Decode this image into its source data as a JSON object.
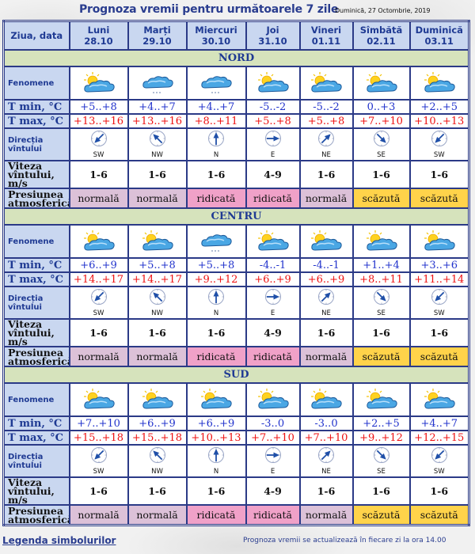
{
  "header": {
    "title": "Prognoza vremii pentru următoarele 7 zile",
    "date": "Duminică, 27 Octombrie, 2019"
  },
  "table": {
    "corner_label": "Ziua, data",
    "days": [
      {
        "name": "Luni",
        "date": "28.10"
      },
      {
        "name": "Marți",
        "date": "29.10"
      },
      {
        "name": "Miercuri",
        "date": "30.10"
      },
      {
        "name": "Joi",
        "date": "31.10"
      },
      {
        "name": "Vineri",
        "date": "01.11"
      },
      {
        "name": "Sîmbătă",
        "date": "02.11"
      },
      {
        "name": "Duminică",
        "date": "03.11"
      }
    ],
    "row_labels": {
      "fenomene": "Fenomene",
      "tmin": "T min, °C",
      "tmax": "T max, °C",
      "dir_1": "Direcția",
      "dir_2": "vîntului",
      "speed_1": "Viteza",
      "speed_2": "vîntului, m/s",
      "pressure_1": "Presiunea",
      "pressure_2": "atmosferică"
    }
  },
  "regions": [
    {
      "name": "NORD",
      "fenomene": [
        "sun-cloud-icon",
        "cloud-snow-icon",
        "cloud-snow-icon",
        "sun-cloud-icon",
        "sun-cloud-icon",
        "sun-cloud-icon",
        "sun-cloud-icon"
      ],
      "tmin": [
        "+5..+8",
        "+4..+7",
        "+4..+7",
        "-5..-2",
        "-5..-2",
        "0..+3",
        "+2..+5"
      ],
      "tmax": [
        "+13..+16",
        "+13..+16",
        "+8..+11",
        "+5..+8",
        "+5..+8",
        "+7..+10",
        "+10..+13"
      ],
      "wind_dir": [
        "SW",
        "NW",
        "N",
        "E",
        "NE",
        "SE",
        "SW"
      ],
      "wind_speed": [
        "1-6",
        "1-6",
        "1-6",
        "4-9",
        "1-6",
        "1-6",
        "1-6"
      ],
      "pressure": [
        "normală",
        "normală",
        "ridicată",
        "ridicată",
        "normală",
        "scăzută",
        "scăzută"
      ]
    },
    {
      "name": "CENTRU",
      "fenomene": [
        "sun-cloud-icon",
        "sun-cloud-icon",
        "cloud-snow-icon",
        "sun-cloud-icon",
        "sun-cloud-icon",
        "sun-cloud-icon",
        "sun-cloud-icon"
      ],
      "tmin": [
        "+6..+9",
        "+5..+8",
        "+5..+8",
        "-4..-1",
        "-4..-1",
        "+1..+4",
        "+3..+6"
      ],
      "tmax": [
        "+14..+17",
        "+14..+17",
        "+9..+12",
        "+6..+9",
        "+6..+9",
        "+8..+11",
        "+11..+14"
      ],
      "wind_dir": [
        "SW",
        "NW",
        "N",
        "E",
        "NE",
        "SE",
        "SW"
      ],
      "wind_speed": [
        "1-6",
        "1-6",
        "1-6",
        "4-9",
        "1-6",
        "1-6",
        "1-6"
      ],
      "pressure": [
        "normală",
        "normală",
        "ridicată",
        "ridicată",
        "normală",
        "scăzută",
        "scăzută"
      ]
    },
    {
      "name": "SUD",
      "fenomene": [
        "sun-cloud-icon",
        "sun-cloud-icon",
        "sun-cloud-icon",
        "sun-cloud-icon",
        "sun-cloud-icon",
        "sun-cloud-icon",
        "sun-cloud-icon"
      ],
      "tmin": [
        "+7..+10",
        "+6..+9",
        "+6..+9",
        "-3..0",
        "-3..0",
        "+2..+5",
        "+4..+7"
      ],
      "tmax": [
        "+15..+18",
        "+15..+18",
        "+10..+13",
        "+7..+10",
        "+7..+10",
        "+9..+12",
        "+12..+15"
      ],
      "wind_dir": [
        "SW",
        "NW",
        "N",
        "E",
        "NE",
        "SE",
        "SW"
      ],
      "wind_speed": [
        "1-6",
        "1-6",
        "1-6",
        "4-9",
        "1-6",
        "1-6",
        "1-6"
      ],
      "pressure": [
        "normală",
        "normală",
        "ridicată",
        "ridicată",
        "normală",
        "scăzută",
        "scăzută"
      ]
    }
  ],
  "wind_arrow_rotation_deg": {
    "N": 180,
    "NE": 225,
    "E": 270,
    "SE": 315,
    "S": 0,
    "SW": 45,
    "W": 90,
    "NW": 135
  },
  "pressure_colors": {
    "normală": "#dcc1d8",
    "ridicată": "#f0a1c8",
    "scăzută": "#ffd34a"
  },
  "colors": {
    "accent": "#2a3d8f",
    "grid": "#2b3a87",
    "label_bg": "#c9d7f0",
    "region_bg": "#d6e3bc",
    "tmin": "#2233cc",
    "tmax": "#ee1111"
  },
  "footer": {
    "legend_link": "Legenda simbolurilor",
    "update_note": "Prognoza vremii se actualizează în fiecare zi la ora 14.00"
  }
}
